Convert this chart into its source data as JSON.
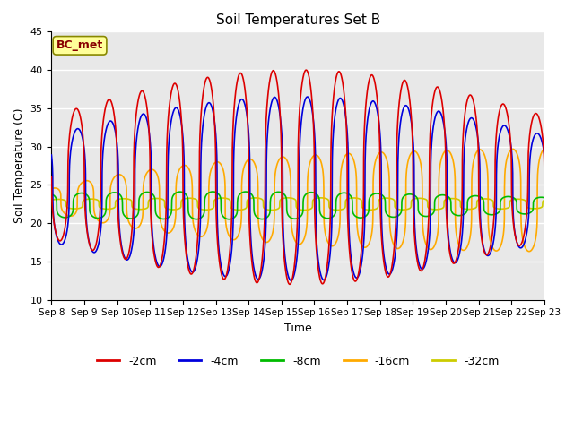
{
  "title": "Soil Temperatures Set B",
  "xlabel": "Time",
  "ylabel": "Soil Temperature (C)",
  "annotation": "BC_met",
  "ylim": [
    10,
    45
  ],
  "xtick_labels": [
    "Sep 8",
    "Sep 9",
    "Sep 10",
    "Sep 11",
    "Sep 12",
    "Sep 13",
    "Sep 14",
    "Sep 15",
    "Sep 16",
    "Sep 17",
    "Sep 18",
    "Sep 19",
    "Sep 20",
    "Sep 21",
    "Sep 22",
    "Sep 23"
  ],
  "line_colors": [
    "#dd0000",
    "#0000dd",
    "#00bb00",
    "#ffaa00",
    "#cccc00"
  ],
  "line_labels": [
    "-2cm",
    "-4cm",
    "-8cm",
    "-16cm",
    "-32cm"
  ],
  "line_width": 1.2,
  "plot_bg": "#e8e8e8",
  "fig_bg": "#ffffff",
  "annotation_bg": "#ffff99",
  "annotation_fg": "#880000"
}
